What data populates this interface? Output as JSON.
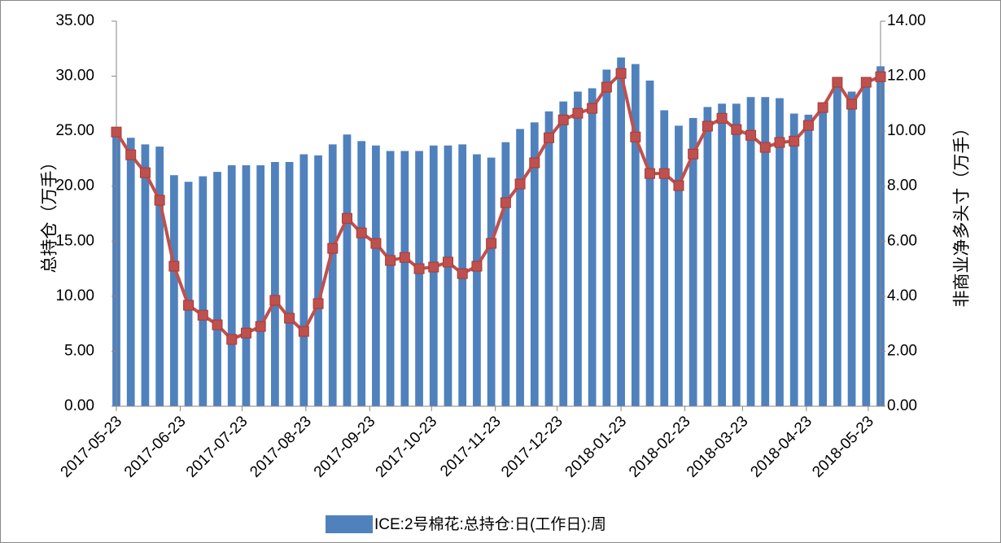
{
  "chart_data": {
    "type": "bar-line",
    "x": [
      "2017-05-23",
      "2017-05-30",
      "2017-06-06",
      "2017-06-13",
      "2017-06-20",
      "2017-06-27",
      "2017-07-04",
      "2017-07-11",
      "2017-07-18",
      "2017-07-25",
      "2017-08-01",
      "2017-08-08",
      "2017-08-15",
      "2017-08-22",
      "2017-08-29",
      "2017-09-05",
      "2017-09-12",
      "2017-09-19",
      "2017-09-26",
      "2017-10-03",
      "2017-10-10",
      "2017-10-17",
      "2017-10-24",
      "2017-10-31",
      "2017-11-07",
      "2017-11-14",
      "2017-11-21",
      "2017-11-28",
      "2017-12-05",
      "2017-12-12",
      "2017-12-19",
      "2017-12-26",
      "2018-01-02",
      "2018-01-09",
      "2018-01-16",
      "2018-01-23",
      "2018-01-30",
      "2018-02-06",
      "2018-02-13",
      "2018-02-20",
      "2018-02-27",
      "2018-03-06",
      "2018-03-13",
      "2018-03-20",
      "2018-03-27",
      "2018-04-03",
      "2018-04-10",
      "2018-04-17",
      "2018-04-24",
      "2018-05-01",
      "2018-05-08",
      "2018-05-15",
      "2018-05-22",
      "2018-05-29"
    ],
    "xlim": [
      "2017-05-23",
      "2018-05-29"
    ],
    "xticks": [
      "2017-05-23",
      "2017-06-23",
      "2017-07-23",
      "2017-08-23",
      "2017-09-23",
      "2017-10-23",
      "2017-11-23",
      "2017-12-23",
      "2018-01-23",
      "2018-02-23",
      "2018-03-23",
      "2018-04-23",
      "2018-05-23"
    ],
    "ylabel": "总持仓（万手）",
    "y2label": "非商业净多头寸（万手）",
    "ylim": [
      0,
      35
    ],
    "yticks": [
      {
        "value": 0,
        "label": "0.00"
      },
      {
        "value": 5,
        "label": "5.00"
      },
      {
        "value": 10,
        "label": "10.00"
      },
      {
        "value": 15,
        "label": "15.00"
      },
      {
        "value": 20,
        "label": "20.00"
      },
      {
        "value": 25,
        "label": "25.00"
      },
      {
        "value": 30,
        "label": "30.00"
      },
      {
        "value": 35,
        "label": "35.00"
      }
    ],
    "y2lim": [
      0,
      14
    ],
    "y2ticks": [
      {
        "value": 0,
        "label": "0.00"
      },
      {
        "value": 2,
        "label": "2.00"
      },
      {
        "value": 4,
        "label": "4.00"
      },
      {
        "value": 6,
        "label": "6.00"
      },
      {
        "value": 8,
        "label": "8.00"
      },
      {
        "value": 10,
        "label": "10.00"
      },
      {
        "value": 12,
        "label": "12.00"
      },
      {
        "value": 14,
        "label": "14.00"
      }
    ],
    "legend": "bottom",
    "series": [
      {
        "name": "ICE:2号棉花:总持仓:日(工作日):周",
        "type": "bar",
        "color": "#4f81bd",
        "values": [
          24.9,
          24.4,
          23.8,
          23.6,
          21.0,
          20.4,
          20.9,
          21.3,
          21.9,
          21.9,
          21.9,
          22.2,
          22.2,
          22.9,
          22.8,
          23.8,
          24.7,
          24.1,
          23.7,
          23.2,
          23.2,
          23.2,
          23.7,
          23.7,
          23.8,
          22.9,
          22.6,
          24.0,
          25.2,
          25.8,
          26.8,
          27.7,
          28.6,
          28.9,
          30.6,
          31.7,
          31.1,
          29.6,
          26.9,
          25.5,
          26.2,
          27.2,
          27.5,
          27.5,
          28.1,
          28.1,
          28.0,
          26.6,
          26.5,
          27.4,
          29.5,
          28.6,
          29.5,
          30.9
        ]
      },
      {
        "type": "line",
        "axis": "y2",
        "color": "#c0504d",
        "values": [
          9.97,
          9.14,
          8.49,
          7.49,
          5.09,
          3.67,
          3.31,
          2.96,
          2.43,
          2.66,
          2.9,
          3.85,
          3.2,
          2.72,
          3.73,
          5.74,
          6.83,
          6.3,
          5.92,
          5.3,
          5.41,
          5.0,
          5.06,
          5.24,
          4.82,
          5.09,
          5.92,
          7.4,
          8.08,
          8.85,
          9.76,
          10.41,
          10.65,
          10.83,
          11.6,
          12.1,
          9.79,
          8.46,
          8.46,
          8.02,
          9.17,
          10.18,
          10.47,
          10.06,
          9.85,
          9.41,
          9.59,
          9.64,
          10.21,
          10.86,
          11.78,
          10.98,
          11.78,
          11.98
        ]
      }
    ]
  }
}
